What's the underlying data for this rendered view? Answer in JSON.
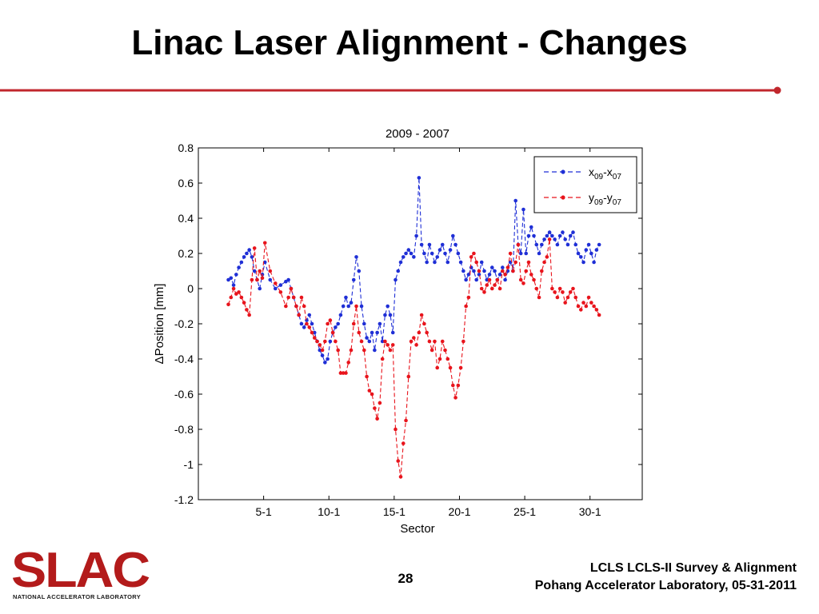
{
  "slide": {
    "title": "Linac Laser Alignment - Changes",
    "accent_color": "#c1272d",
    "page_number": "28",
    "footer_line1": "LCLS LCLS-II Survey & Alignment",
    "footer_line2": "Pohang Accelerator Laboratory, 05-31-2011"
  },
  "logo": {
    "wordmark": "SLAC",
    "tagline": "NATIONAL ACCELERATOR LABORATORY",
    "color": "#b31b1b"
  },
  "chart_data": {
    "type": "line",
    "title": "2009 - 2007",
    "xlabel": "Sector",
    "ylabel": "ΔPosition [mm]",
    "xlim": [
      0,
      34
    ],
    "ylim": [
      -1.2,
      0.8
    ],
    "x_ticks": [
      {
        "value": 5,
        "label": "5-1"
      },
      {
        "value": 10,
        "label": "10-1"
      },
      {
        "value": 15,
        "label": "15-1"
      },
      {
        "value": 20,
        "label": "20-1"
      },
      {
        "value": 25,
        "label": "25-1"
      },
      {
        "value": 30,
        "label": "30-1"
      }
    ],
    "y_ticks": [
      {
        "value": 0.8,
        "label": "0.8"
      },
      {
        "value": 0.6,
        "label": "0.6"
      },
      {
        "value": 0.4,
        "label": "0.4"
      },
      {
        "value": 0.2,
        "label": "0.2"
      },
      {
        "value": 0,
        "label": "0"
      },
      {
        "value": -0.2,
        "label": "-0.2"
      },
      {
        "value": -0.4,
        "label": "-0.4"
      },
      {
        "value": -0.6,
        "label": "-0.6"
      },
      {
        "value": -0.8,
        "label": "-0.8"
      },
      {
        "value": -1,
        "label": "-1"
      },
      {
        "value": -1.2,
        "label": "-1.2"
      }
    ],
    "grid": false,
    "legend_position": "top-right",
    "series": [
      {
        "legend_main_1": "x",
        "legend_sub_1": "09",
        "legend_mid": "-x",
        "legend_sub_2": "07",
        "color": "#1f2fd6",
        "x": [
          2.3,
          2.5,
          2.7,
          2.9,
          3.1,
          3.3,
          3.5,
          3.7,
          3.9,
          4.1,
          4.3,
          4.5,
          4.7,
          4.9,
          5.1,
          5.5,
          5.9,
          6.3,
          6.7,
          6.9,
          7.1,
          7.3,
          7.5,
          7.7,
          7.9,
          8.1,
          8.3,
          8.5,
          8.7,
          8.9,
          9.1,
          9.3,
          9.5,
          9.7,
          9.9,
          10.1,
          10.3,
          10.5,
          10.7,
          10.9,
          11.1,
          11.3,
          11.5,
          11.7,
          11.9,
          12.1,
          12.3,
          12.5,
          12.7,
          12.9,
          13.1,
          13.3,
          13.5,
          13.7,
          13.9,
          14.1,
          14.3,
          14.5,
          14.7,
          14.9,
          15.1,
          15.3,
          15.5,
          15.7,
          15.9,
          16.1,
          16.3,
          16.5,
          16.7,
          16.9,
          17.1,
          17.3,
          17.5,
          17.7,
          17.9,
          18.1,
          18.3,
          18.5,
          18.7,
          18.9,
          19.1,
          19.3,
          19.5,
          19.7,
          19.9,
          20.1,
          20.3,
          20.5,
          20.7,
          20.9,
          21.1,
          21.3,
          21.5,
          21.7,
          21.9,
          22.1,
          22.3,
          22.5,
          22.7,
          22.9,
          23.1,
          23.3,
          23.5,
          23.7,
          23.9,
          24.1,
          24.3,
          24.5,
          24.7,
          24.9,
          25.1,
          25.3,
          25.5,
          25.7,
          25.9,
          26.1,
          26.3,
          26.5,
          26.7,
          26.9,
          27.1,
          27.3,
          27.5,
          27.7,
          27.9,
          28.1,
          28.3,
          28.5,
          28.7,
          28.9,
          29.1,
          29.3,
          29.5,
          29.7,
          29.9,
          30.1,
          30.3,
          30.5,
          30.7
        ],
        "y": [
          0.05,
          0.06,
          0.02,
          0.08,
          0.12,
          0.15,
          0.18,
          0.2,
          0.22,
          0.18,
          0.1,
          0.05,
          0.0,
          0.08,
          0.15,
          0.05,
          0.0,
          0.02,
          0.04,
          0.05,
          0.0,
          -0.05,
          -0.1,
          -0.15,
          -0.2,
          -0.22,
          -0.18,
          -0.15,
          -0.2,
          -0.25,
          -0.3,
          -0.35,
          -0.38,
          -0.42,
          -0.4,
          -0.3,
          -0.25,
          -0.22,
          -0.2,
          -0.15,
          -0.1,
          -0.05,
          -0.1,
          -0.08,
          0.05,
          0.18,
          0.1,
          -0.1,
          -0.2,
          -0.28,
          -0.3,
          -0.25,
          -0.35,
          -0.25,
          -0.2,
          -0.3,
          -0.15,
          -0.1,
          -0.15,
          -0.25,
          0.05,
          0.1,
          0.15,
          0.18,
          0.2,
          0.22,
          0.2,
          0.18,
          0.3,
          0.63,
          0.25,
          0.2,
          0.15,
          0.25,
          0.2,
          0.15,
          0.18,
          0.22,
          0.25,
          0.2,
          0.15,
          0.22,
          0.3,
          0.25,
          0.2,
          0.15,
          0.1,
          0.05,
          0.08,
          0.12,
          0.1,
          0.05,
          0.08,
          0.15,
          0.1,
          0.05,
          0.08,
          0.12,
          0.1,
          0.05,
          0.08,
          0.12,
          0.05,
          0.1,
          0.15,
          0.1,
          0.5,
          0.25,
          0.2,
          0.45,
          0.2,
          0.3,
          0.35,
          0.3,
          0.25,
          0.2,
          0.25,
          0.28,
          0.3,
          0.32,
          0.3,
          0.28,
          0.25,
          0.3,
          0.32,
          0.28,
          0.25,
          0.3,
          0.32,
          0.25,
          0.2,
          0.18,
          0.15,
          0.22,
          0.25,
          0.2,
          0.15,
          0.22,
          0.25
        ]
      },
      {
        "legend_main_1": "y",
        "legend_sub_1": "09",
        "legend_mid": "-y",
        "legend_sub_2": "07",
        "color": "#e8141c",
        "x": [
          2.3,
          2.5,
          2.7,
          2.9,
          3.1,
          3.3,
          3.5,
          3.7,
          3.9,
          4.1,
          4.3,
          4.5,
          4.7,
          4.9,
          5.1,
          5.5,
          5.9,
          6.3,
          6.7,
          6.9,
          7.1,
          7.3,
          7.5,
          7.7,
          7.9,
          8.1,
          8.3,
          8.5,
          8.7,
          8.9,
          9.1,
          9.3,
          9.5,
          9.7,
          9.9,
          10.1,
          10.3,
          10.5,
          10.7,
          10.9,
          11.1,
          11.3,
          11.5,
          11.7,
          11.9,
          12.1,
          12.3,
          12.5,
          12.7,
          12.9,
          13.1,
          13.3,
          13.5,
          13.7,
          13.9,
          14.1,
          14.3,
          14.5,
          14.7,
          14.9,
          15.1,
          15.3,
          15.5,
          15.7,
          15.9,
          16.1,
          16.3,
          16.5,
          16.7,
          16.9,
          17.1,
          17.3,
          17.5,
          17.7,
          17.9,
          18.1,
          18.3,
          18.5,
          18.7,
          18.9,
          19.1,
          19.3,
          19.5,
          19.7,
          19.9,
          20.1,
          20.3,
          20.5,
          20.7,
          20.9,
          21.1,
          21.3,
          21.5,
          21.7,
          21.9,
          22.1,
          22.3,
          22.5,
          22.7,
          22.9,
          23.1,
          23.3,
          23.5,
          23.7,
          23.9,
          24.1,
          24.3,
          24.5,
          24.7,
          24.9,
          25.1,
          25.3,
          25.5,
          25.7,
          25.9,
          26.1,
          26.3,
          26.5,
          26.7,
          26.9,
          27.1,
          27.3,
          27.5,
          27.7,
          27.9,
          28.1,
          28.3,
          28.5,
          28.7,
          28.9,
          29.1,
          29.3,
          29.5,
          29.7,
          29.9,
          30.1,
          30.3,
          30.5,
          30.7
        ],
        "y": [
          -0.09,
          -0.05,
          0.0,
          -0.03,
          -0.02,
          -0.05,
          -0.08,
          -0.12,
          -0.15,
          0.05,
          0.23,
          0.05,
          0.1,
          0.06,
          0.26,
          0.1,
          0.03,
          -0.02,
          -0.1,
          -0.05,
          0.0,
          -0.05,
          -0.1,
          -0.15,
          -0.05,
          -0.1,
          -0.2,
          -0.22,
          -0.25,
          -0.28,
          -0.3,
          -0.32,
          -0.35,
          -0.3,
          -0.2,
          -0.18,
          -0.25,
          -0.3,
          -0.35,
          -0.48,
          -0.48,
          -0.48,
          -0.42,
          -0.35,
          -0.2,
          -0.1,
          -0.25,
          -0.3,
          -0.35,
          -0.5,
          -0.58,
          -0.6,
          -0.68,
          -0.74,
          -0.65,
          -0.4,
          -0.3,
          -0.32,
          -0.35,
          -0.32,
          -0.8,
          -0.98,
          -1.07,
          -0.88,
          -0.75,
          -0.5,
          -0.3,
          -0.28,
          -0.32,
          -0.25,
          -0.15,
          -0.2,
          -0.25,
          -0.3,
          -0.35,
          -0.3,
          -0.45,
          -0.4,
          -0.3,
          -0.35,
          -0.4,
          -0.45,
          -0.55,
          -0.62,
          -0.55,
          -0.45,
          -0.3,
          -0.1,
          -0.05,
          0.18,
          0.2,
          0.15,
          0.1,
          0.0,
          -0.02,
          0.02,
          0.05,
          0.0,
          0.02,
          0.05,
          0.0,
          0.1,
          0.08,
          0.12,
          0.2,
          0.1,
          0.15,
          0.25,
          0.05,
          0.03,
          0.1,
          0.15,
          0.08,
          0.05,
          0.0,
          -0.05,
          0.1,
          0.15,
          0.18,
          0.28,
          0.0,
          -0.02,
          -0.05,
          0.0,
          -0.02,
          -0.08,
          -0.05,
          -0.02,
          0.0,
          -0.05,
          -0.1,
          -0.12,
          -0.08,
          -0.1,
          -0.05,
          -0.08,
          -0.1,
          -0.12,
          -0.15
        ]
      }
    ]
  }
}
